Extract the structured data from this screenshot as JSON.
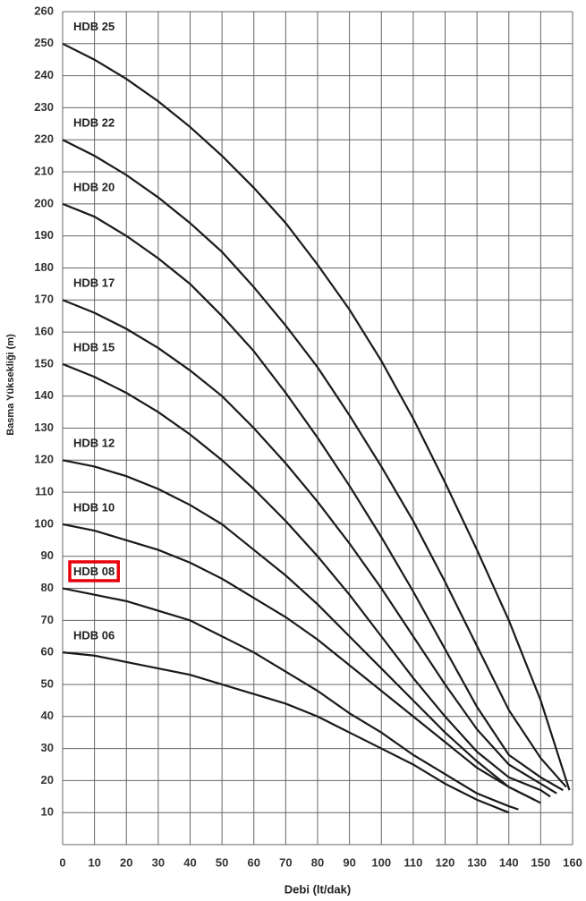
{
  "chart_data": {
    "type": "line",
    "xlabel": "Debi (lt/dak)",
    "ylabel": "Basma Yüksekliği (m)",
    "xlim": [
      0,
      160
    ],
    "ylim": [
      0,
      260
    ],
    "xticks": [
      0,
      10,
      20,
      30,
      40,
      50,
      60,
      70,
      80,
      90,
      100,
      110,
      120,
      130,
      140,
      150,
      160
    ],
    "yticks": [
      10,
      20,
      30,
      40,
      50,
      60,
      70,
      80,
      90,
      100,
      110,
      120,
      130,
      140,
      150,
      160,
      170,
      180,
      190,
      200,
      210,
      220,
      230,
      240,
      250,
      260
    ],
    "grid": true,
    "highlight_color": "#e8000b",
    "series": [
      {
        "name": "HDB 25",
        "color": "#1a1a1a",
        "x": [
          0,
          10,
          20,
          30,
          40,
          50,
          60,
          70,
          80,
          90,
          100,
          110,
          120,
          130,
          140,
          150,
          159
        ],
        "values": [
          250,
          245,
          239,
          232,
          224,
          215,
          205,
          194,
          181,
          167,
          151,
          133,
          113,
          92,
          70,
          45,
          17
        ]
      },
      {
        "name": "HDB 22",
        "color": "#1a1a1a",
        "x": [
          0,
          10,
          20,
          30,
          40,
          50,
          60,
          70,
          80,
          90,
          100,
          110,
          120,
          130,
          140,
          150,
          158
        ],
        "values": [
          220,
          215,
          209,
          202,
          194,
          185,
          174,
          162,
          149,
          134,
          118,
          101,
          82,
          62,
          42,
          27,
          18
        ]
      },
      {
        "name": "HDB 20",
        "color": "#1a1a1a",
        "x": [
          0,
          10,
          20,
          30,
          40,
          50,
          60,
          70,
          80,
          90,
          100,
          110,
          120,
          130,
          140,
          150,
          157
        ],
        "values": [
          200,
          196,
          190,
          183,
          175,
          165,
          154,
          141,
          127,
          112,
          96,
          79,
          61,
          43,
          28,
          21,
          17
        ]
      },
      {
        "name": "HDB 17",
        "color": "#1a1a1a",
        "x": [
          0,
          10,
          20,
          30,
          40,
          50,
          60,
          70,
          80,
          90,
          100,
          110,
          120,
          130,
          140,
          150,
          155
        ],
        "values": [
          170,
          166,
          161,
          155,
          148,
          140,
          130,
          119,
          107,
          94,
          80,
          65,
          50,
          36,
          25,
          19,
          16
        ]
      },
      {
        "name": "HDB 15",
        "color": "#1a1a1a",
        "x": [
          0,
          10,
          20,
          30,
          40,
          50,
          60,
          70,
          80,
          90,
          100,
          110,
          120,
          130,
          140,
          150,
          153
        ],
        "values": [
          150,
          146,
          141,
          135,
          128,
          120,
          111,
          101,
          90,
          78,
          65,
          52,
          40,
          29,
          21,
          17,
          15
        ]
      },
      {
        "name": "HDB 12",
        "color": "#1a1a1a",
        "x": [
          0,
          10,
          20,
          30,
          40,
          50,
          60,
          70,
          80,
          90,
          100,
          110,
          120,
          130,
          140,
          150
        ],
        "values": [
          120,
          118,
          115,
          111,
          106,
          100,
          92,
          84,
          75,
          65,
          55,
          45,
          35,
          26,
          18,
          13
        ]
      },
      {
        "name": "HDB 10",
        "color": "#1a1a1a",
        "x": [
          0,
          10,
          20,
          30,
          40,
          50,
          60,
          70,
          80,
          90,
          100,
          110,
          120,
          130,
          140,
          148
        ],
        "values": [
          100,
          98,
          95,
          92,
          88,
          83,
          77,
          71,
          64,
          56,
          48,
          40,
          32,
          24,
          18,
          14
        ]
      },
      {
        "name": "HDB 08",
        "color": "#1a1a1a",
        "highlighted": true,
        "x": [
          0,
          10,
          20,
          30,
          40,
          50,
          60,
          70,
          80,
          90,
          100,
          110,
          120,
          130,
          140,
          143
        ],
        "values": [
          80,
          78,
          76,
          73,
          70,
          65,
          60,
          54,
          48,
          41,
          35,
          28,
          22,
          16,
          12,
          11
        ]
      },
      {
        "name": "HDB 06",
        "color": "#1a1a1a",
        "x": [
          0,
          10,
          20,
          30,
          40,
          50,
          60,
          70,
          80,
          90,
          100,
          110,
          120,
          130,
          140
        ],
        "values": [
          60,
          59,
          57,
          55,
          53,
          50,
          47,
          44,
          40,
          35,
          30,
          25,
          19,
          14,
          10
        ]
      }
    ]
  }
}
